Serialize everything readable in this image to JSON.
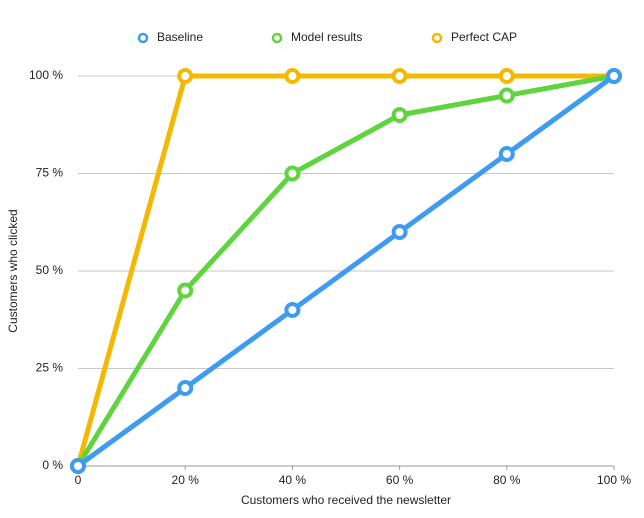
{
  "chart_data": {
    "type": "line",
    "x_label": "Customers who received the newsletter",
    "y_label": "Customers who clicked",
    "x": [
      0,
      20,
      40,
      60,
      80,
      100
    ],
    "series": [
      {
        "name": "Baseline",
        "color": "#3d9cf0",
        "values": [
          0,
          20,
          40,
          60,
          80,
          100
        ]
      },
      {
        "name": "Model results",
        "color": "#5ed43d",
        "values": [
          0,
          45,
          75,
          90,
          95,
          100
        ]
      },
      {
        "name": "Perfect CAP",
        "color": "#f5b800",
        "values": [
          0,
          100,
          100,
          100,
          100,
          100
        ]
      }
    ],
    "xlim": [
      0,
      100
    ],
    "xticks": [
      0,
      {
        "value": 20,
        "label": "20 %"
      },
      {
        "value": 40,
        "label": "40 %"
      },
      {
        "value": 60,
        "label": "60 %"
      },
      {
        "value": 80,
        "label": "80 %"
      },
      {
        "value": 100,
        "label": "100 %"
      }
    ],
    "ylim": [
      0,
      100
    ],
    "yticks": [
      {
        "value": 0,
        "label": "0 %"
      },
      {
        "value": 25,
        "label": "25 %"
      },
      {
        "value": 50,
        "label": "50 %"
      },
      {
        "value": 75,
        "label": "75 %"
      },
      {
        "value": 100,
        "label": "100 %"
      }
    ],
    "grid": true,
    "legend": "top"
  }
}
